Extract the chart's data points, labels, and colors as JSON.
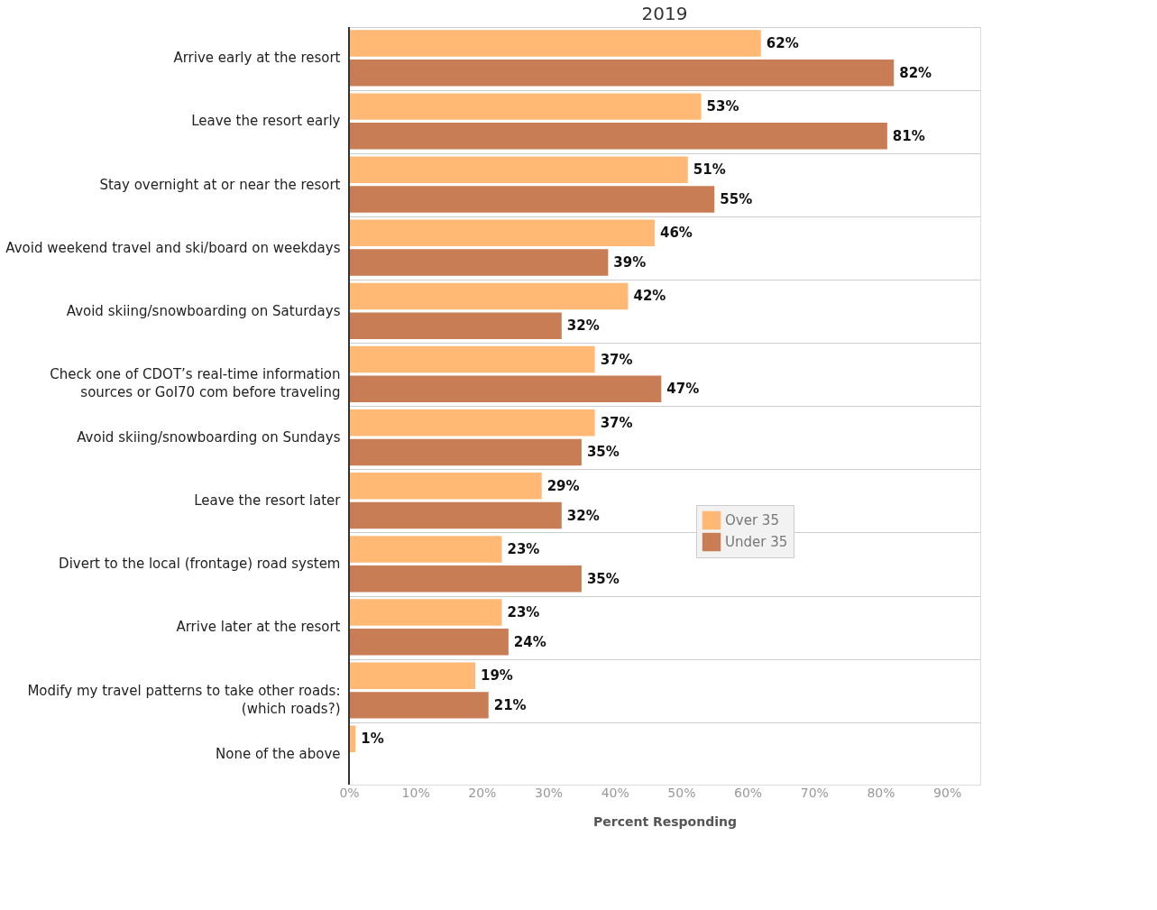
{
  "chart_data": {
    "type": "bar",
    "orientation": "horizontal",
    "title": "2019",
    "xlabel": "Percent Responding",
    "categories": [
      "Arrive early at the resort",
      "Leave the resort early",
      "Stay overnight at or near the resort",
      "Avoid weekend travel and ski/board on weekdays",
      "Avoid skiing/snowboarding on Saturdays",
      "Check one of CDOT’s real-time information sources or GoI70 com before traveling",
      "Avoid skiing/snowboarding on Sundays",
      "Leave the resort later",
      "Divert to the local (frontage) road system",
      "Arrive later at the resort",
      "Modify my travel patterns to take other roads: (which roads?)",
      "None of the above"
    ],
    "series": [
      {
        "name": "Over 35",
        "color": "#ffb974",
        "values": [
          62,
          53,
          51,
          46,
          42,
          37,
          37,
          29,
          23,
          23,
          19,
          1
        ],
        "value_labels": [
          "62%",
          "53%",
          "51%",
          "46%",
          "42%",
          "37%",
          "37%",
          "29%",
          "23%",
          "23%",
          "19%",
          "1%"
        ]
      },
      {
        "name": "Under 35",
        "color": "#c87d55",
        "values": [
          82,
          81,
          55,
          39,
          32,
          47,
          35,
          32,
          35,
          24,
          21,
          null
        ],
        "value_labels": [
          "82%",
          "81%",
          "55%",
          "39%",
          "32%",
          "47%",
          "35%",
          "32%",
          "35%",
          "24%",
          "21%",
          null
        ]
      }
    ],
    "xlim": [
      0,
      95
    ],
    "xticks": [
      {
        "value": 0,
        "label": "0%"
      },
      {
        "value": 10,
        "label": "10%"
      },
      {
        "value": 20,
        "label": "20%"
      },
      {
        "value": 30,
        "label": "30%"
      },
      {
        "value": 40,
        "label": "40%"
      },
      {
        "value": 50,
        "label": "50%"
      },
      {
        "value": 60,
        "label": "60%"
      },
      {
        "value": 70,
        "label": "70%"
      },
      {
        "value": 80,
        "label": "80%"
      },
      {
        "value": 90,
        "label": "90%"
      }
    ],
    "legend": "right",
    "grid": false
  }
}
